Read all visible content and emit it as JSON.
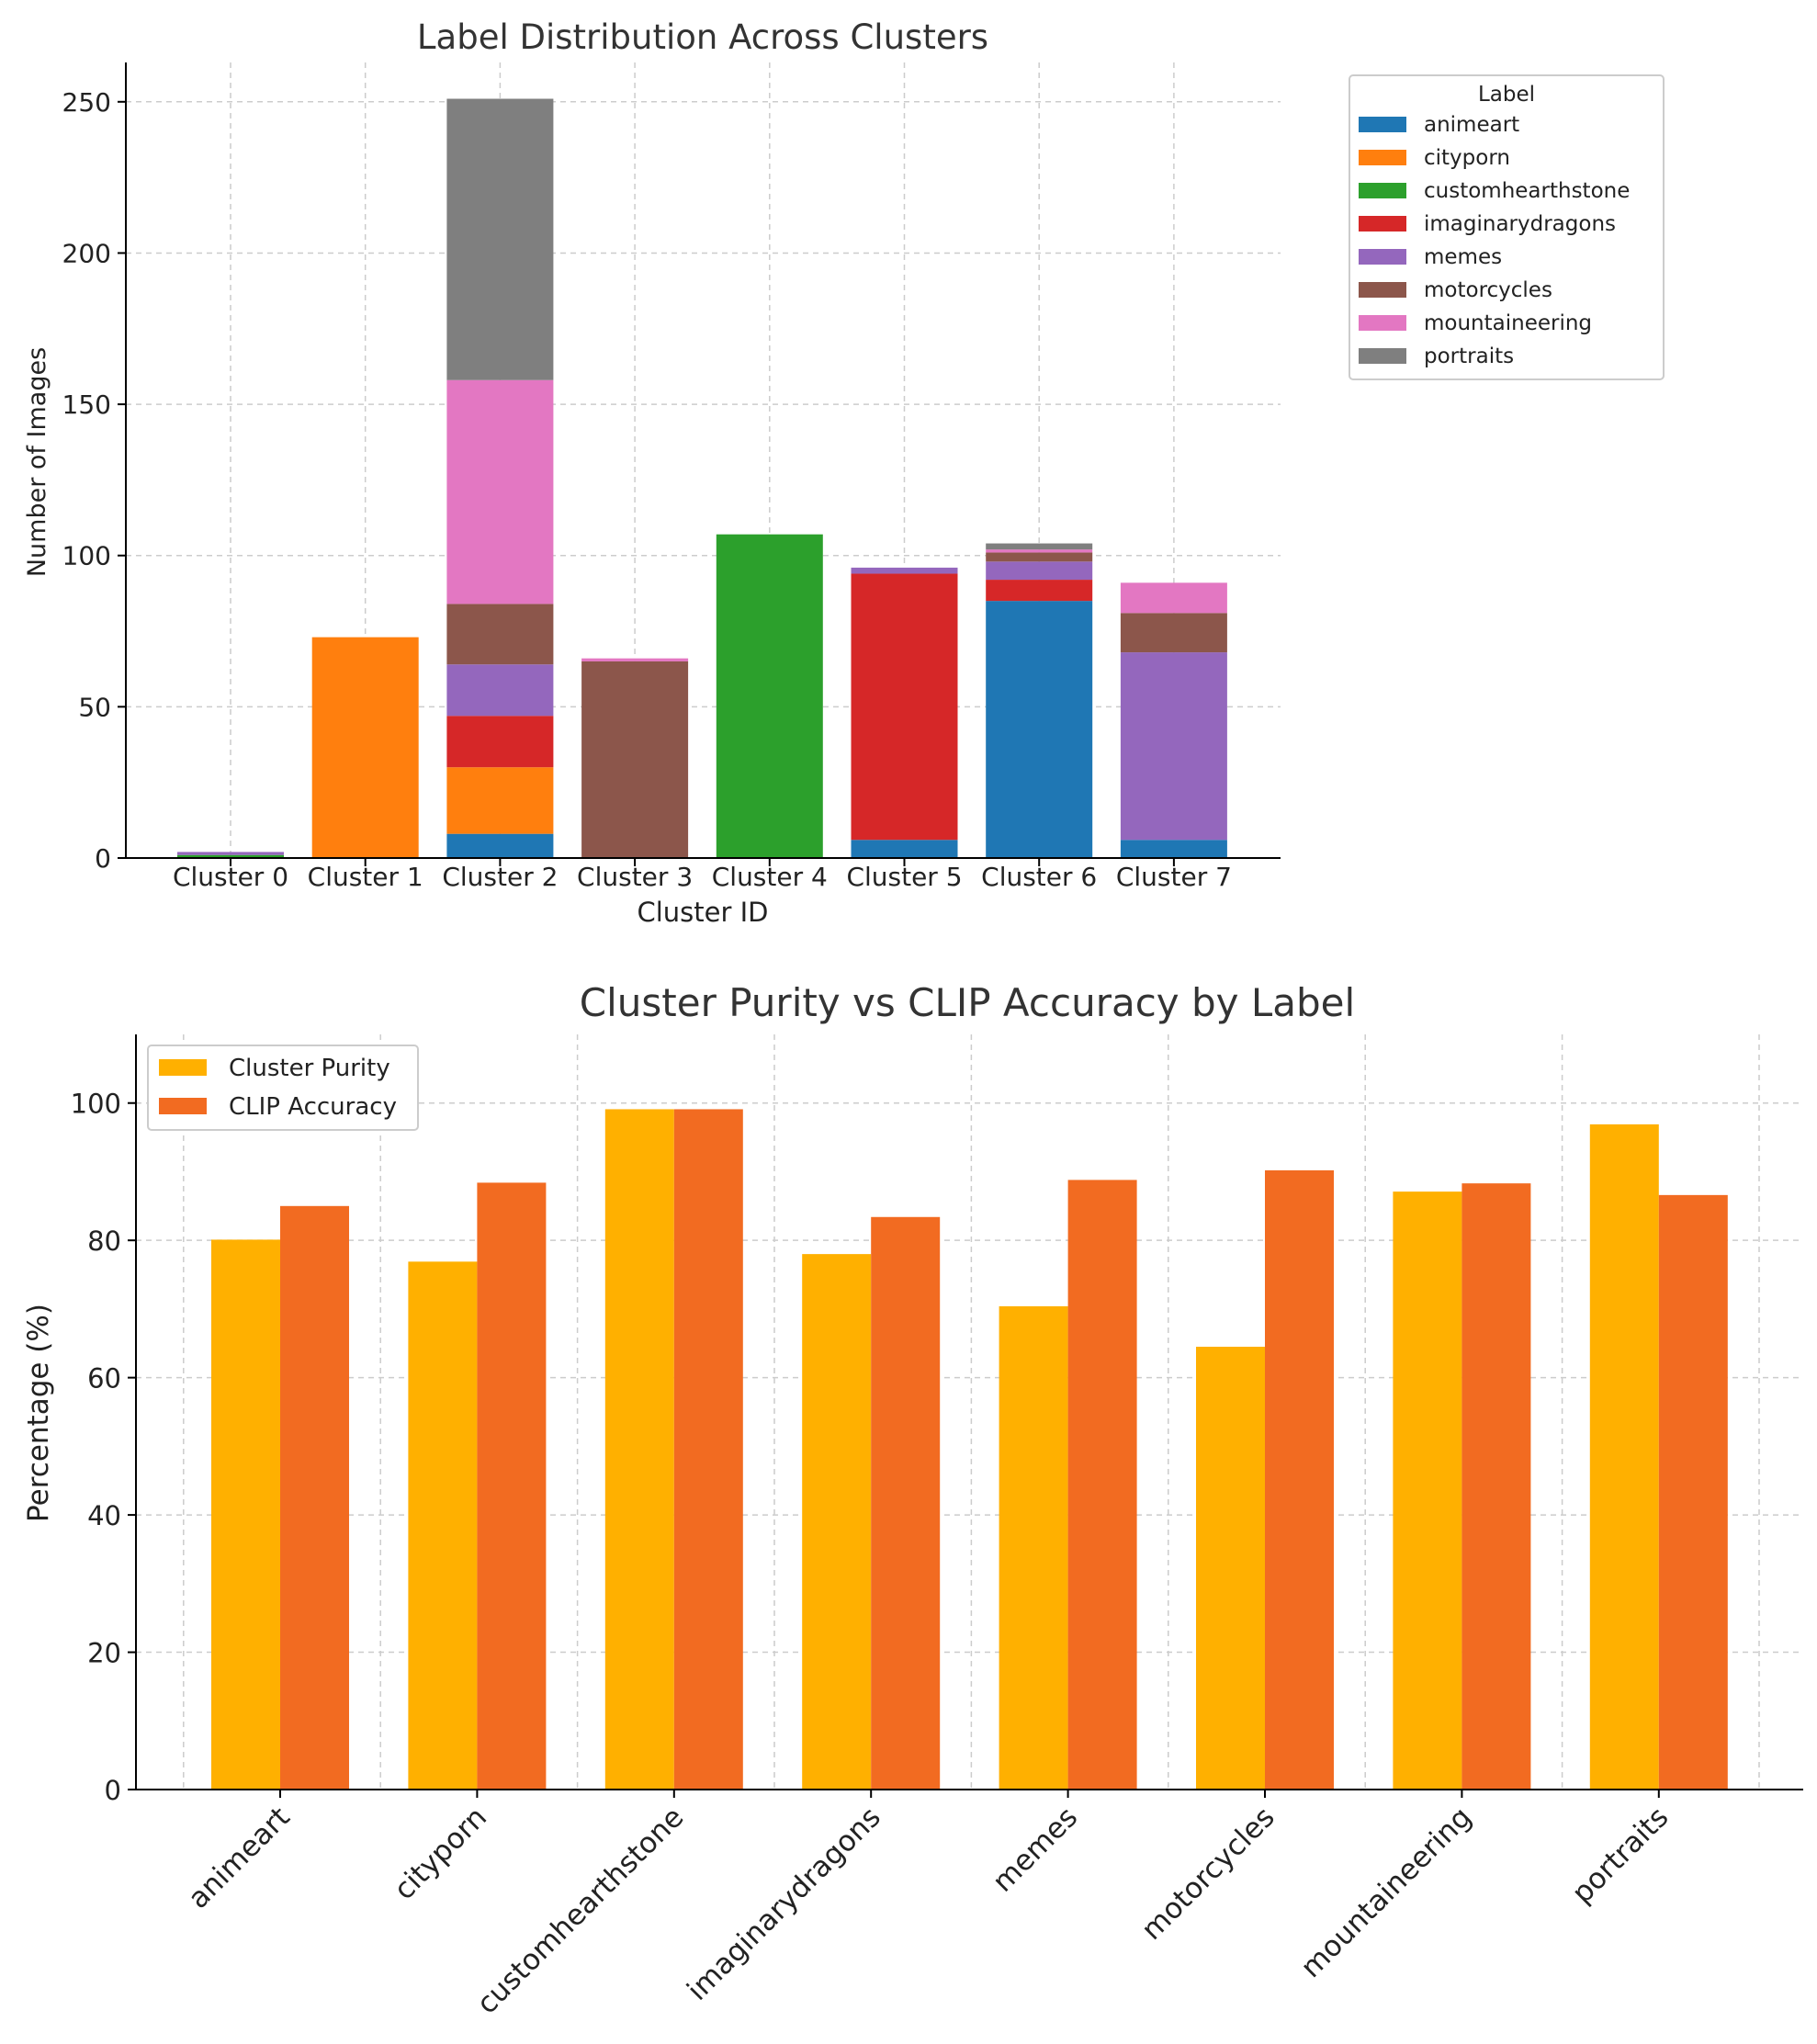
{
  "chart_data": [
    {
      "type": "bar",
      "stacked": true,
      "title": "Label Distribution Across Clusters",
      "xlabel": "Cluster ID",
      "ylabel": "Number of Images",
      "categories": [
        "Cluster 0",
        "Cluster 1",
        "Cluster 2",
        "Cluster 3",
        "Cluster 4",
        "Cluster 5",
        "Cluster 6",
        "Cluster 7"
      ],
      "ylim": [
        0,
        263
      ],
      "yticks": [
        0,
        50,
        100,
        150,
        200,
        250
      ],
      "grid": true,
      "legend_title": "Label",
      "legend_position": "outside-top-right",
      "series": [
        {
          "name": "animeart",
          "color": "#1f77b4",
          "values": [
            0,
            0,
            8,
            0,
            0,
            6,
            85,
            6
          ]
        },
        {
          "name": "cityporn",
          "color": "#ff7f0e",
          "values": [
            0,
            73,
            22,
            0,
            0,
            0,
            0,
            0
          ]
        },
        {
          "name": "customhearthstone",
          "color": "#2ca02c",
          "values": [
            1,
            0,
            0,
            0,
            107,
            0,
            0,
            0
          ]
        },
        {
          "name": "imaginarydragons",
          "color": "#d62728",
          "values": [
            0,
            0,
            17,
            0,
            0,
            88,
            7,
            0
          ]
        },
        {
          "name": "memes",
          "color": "#9467bd",
          "values": [
            1,
            0,
            17,
            0,
            0,
            2,
            6,
            62
          ]
        },
        {
          "name": "motorcycles",
          "color": "#8c564b",
          "values": [
            0,
            0,
            20,
            65,
            0,
            0,
            3,
            13
          ]
        },
        {
          "name": "mountaineering",
          "color": "#e377c2",
          "values": [
            0,
            0,
            74,
            1,
            0,
            0,
            1,
            10
          ]
        },
        {
          "name": "portraits",
          "color": "#7f7f7f",
          "values": [
            0,
            0,
            93,
            0,
            0,
            0,
            2,
            0
          ]
        }
      ]
    },
    {
      "type": "bar",
      "stacked": false,
      "title": "Cluster Purity vs CLIP Accuracy by Label",
      "xlabel": "",
      "ylabel": "Percentage (%)",
      "categories": [
        "animeart",
        "cityporn",
        "customhearthstone",
        "imaginarydragons",
        "memes",
        "motorcycles",
        "mountaineering",
        "portraits"
      ],
      "ylim": [
        0,
        110
      ],
      "yticks": [
        0,
        20,
        40,
        60,
        80,
        100
      ],
      "grid": true,
      "legend_position": "upper-left",
      "series": [
        {
          "name": "Cluster Purity",
          "color": "#ffb000",
          "values": [
            80.1,
            76.9,
            99.1,
            78.0,
            70.4,
            64.5,
            87.1,
            96.9
          ]
        },
        {
          "name": "CLIP Accuracy",
          "color": "#f26b21",
          "values": [
            85.0,
            88.4,
            99.1,
            83.4,
            88.8,
            90.2,
            88.3,
            86.6
          ]
        }
      ]
    }
  ]
}
